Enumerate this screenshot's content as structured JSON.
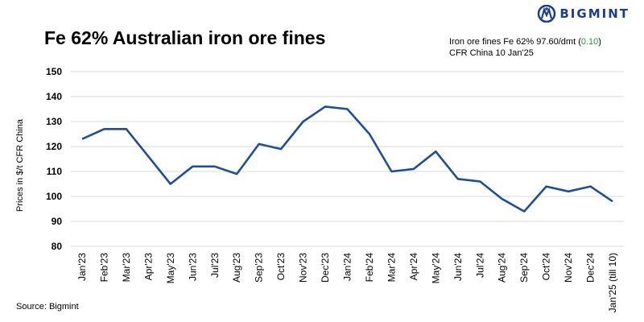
{
  "brand": {
    "name": "BIGMINT",
    "color": "#1a3e8c"
  },
  "title": "Fe 62% Australian iron ore fines",
  "info": {
    "line1_prefix": "Iron ore fines Fe 62% 97.60/dmt (",
    "change": "0.10",
    "line1_suffix": ")",
    "line2": "CFR China 10 Jan'25",
    "change_color": "#1e9a3c"
  },
  "source": "Source: Bigmint",
  "chart_data": {
    "type": "line",
    "title": "Fe 62% Australian iron ore fines",
    "ylabel": "Prices in $/t CFR China",
    "xlabel": "",
    "ylim": [
      80,
      150
    ],
    "yticks": [
      80,
      90,
      100,
      110,
      120,
      130,
      140,
      150
    ],
    "grid": true,
    "line_color": "#1f4e96",
    "categories": [
      "Jan'23",
      "Feb'23",
      "Mar'23",
      "Apr'23",
      "May'23",
      "Jun'23",
      "Jul'23",
      "Aug'23",
      "Sep'23",
      "Oct'23",
      "Nov'23",
      "Dec'23",
      "Jan'24",
      "Feb'24",
      "Mar'24",
      "Apr'24",
      "May'24",
      "Jun'24",
      "Jul'24",
      "Aug'24",
      "Sep'24",
      "Oct'24",
      "Nov'24",
      "Dec'24",
      "Jan'25 (till 10)"
    ],
    "values": [
      123,
      127,
      127,
      116,
      105,
      112,
      112,
      109,
      121,
      119,
      130,
      136,
      135,
      125,
      110,
      111,
      118,
      107,
      106,
      99,
      94,
      104,
      102,
      104,
      98
    ]
  }
}
